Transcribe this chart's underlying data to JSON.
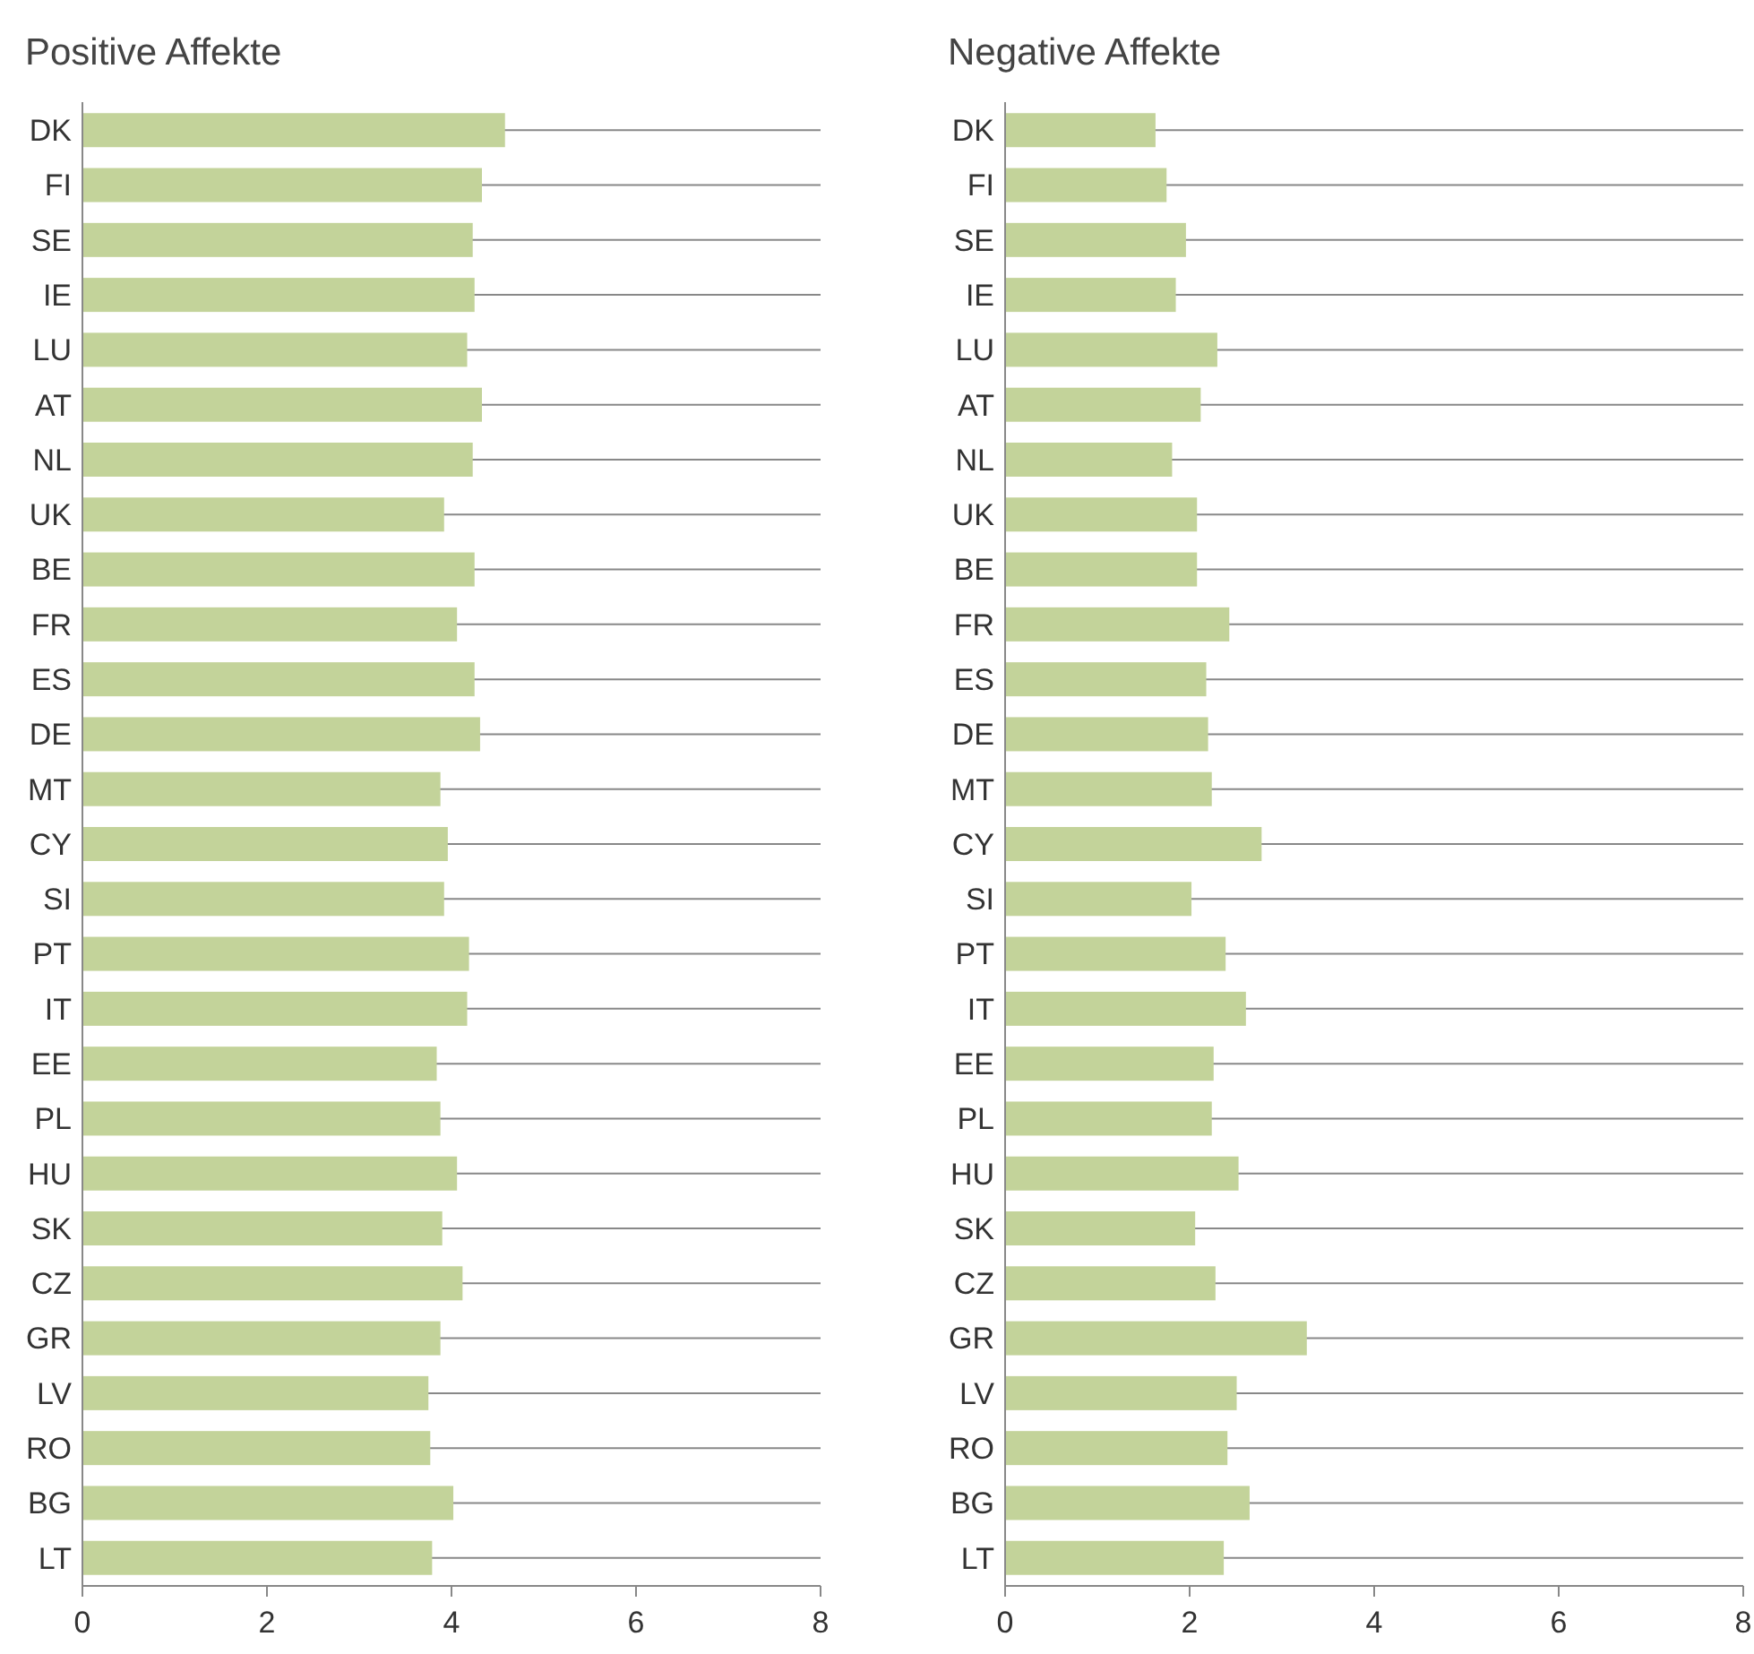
{
  "chart_data": [
    {
      "type": "bar",
      "orientation": "horizontal",
      "title": "Positive Affekte",
      "categories": [
        "DK",
        "FI",
        "SE",
        "IE",
        "LU",
        "AT",
        "NL",
        "UK",
        "BE",
        "FR",
        "ES",
        "DE",
        "MT",
        "CY",
        "SI",
        "PT",
        "IT",
        "EE",
        "PL",
        "HU",
        "SK",
        "CZ",
        "GR",
        "LV",
        "RO",
        "BG",
        "LT"
      ],
      "values": [
        4.58,
        4.33,
        4.23,
        4.25,
        4.17,
        4.33,
        4.23,
        3.92,
        4.25,
        4.06,
        4.25,
        4.31,
        3.88,
        3.96,
        3.92,
        4.19,
        4.17,
        3.84,
        3.88,
        4.06,
        3.9,
        4.12,
        3.88,
        3.75,
        3.77,
        4.02,
        3.79
      ],
      "color": "#c3d39a",
      "xlim": [
        0,
        8
      ],
      "xticks": [
        0,
        2,
        4,
        6,
        8
      ],
      "grid": "y"
    },
    {
      "type": "bar",
      "orientation": "horizontal",
      "title": "Negative Affekte",
      "categories": [
        "DK",
        "FI",
        "SE",
        "IE",
        "LU",
        "AT",
        "NL",
        "UK",
        "BE",
        "FR",
        "ES",
        "DE",
        "MT",
        "CY",
        "SI",
        "PT",
        "IT",
        "EE",
        "PL",
        "HU",
        "SK",
        "CZ",
        "GR",
        "LV",
        "RO",
        "BG",
        "LT"
      ],
      "values": [
        1.63,
        1.75,
        1.96,
        1.85,
        2.3,
        2.12,
        1.81,
        2.08,
        2.08,
        2.43,
        2.18,
        2.2,
        2.24,
        2.78,
        2.02,
        2.39,
        2.61,
        2.26,
        2.24,
        2.53,
        2.06,
        2.28,
        3.27,
        2.51,
        2.41,
        2.65,
        2.37
      ],
      "color": "#c3d39a",
      "xlim": [
        0,
        8
      ],
      "xticks": [
        0,
        2,
        4,
        6,
        8
      ],
      "grid": "y"
    }
  ]
}
